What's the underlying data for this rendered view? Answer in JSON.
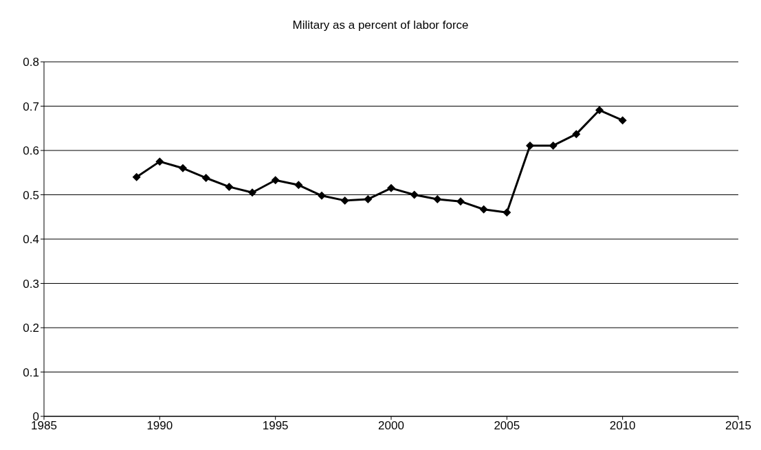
{
  "chart_data": {
    "type": "line",
    "title": "Military as a percent of labor force",
    "x": [
      1989,
      1990,
      1991,
      1992,
      1993,
      1994,
      1995,
      1996,
      1997,
      1998,
      1999,
      2000,
      2001,
      2002,
      2003,
      2004,
      2005,
      2006,
      2007,
      2008,
      2009,
      2010
    ],
    "series": [
      {
        "color": "#000000",
        "values": [
          0.54,
          0.575,
          0.56,
          0.538,
          0.518,
          0.505,
          0.533,
          0.522,
          0.498,
          0.487,
          0.49,
          0.515,
          0.5,
          0.49,
          0.485,
          0.467,
          0.46,
          0.611,
          0.611,
          0.637,
          0.691,
          0.668
        ]
      }
    ],
    "xlim": [
      1985,
      2015
    ],
    "xticks": [
      1985,
      1990,
      1995,
      2000,
      2005,
      2010,
      2015
    ],
    "ylim": [
      0,
      0.8
    ],
    "yticks": [
      0,
      0.1,
      0.2,
      0.3,
      0.4,
      0.5,
      0.6,
      0.7,
      0.8
    ],
    "grid": "y",
    "legend": false,
    "marker": "diamond",
    "line_style": "solid"
  }
}
